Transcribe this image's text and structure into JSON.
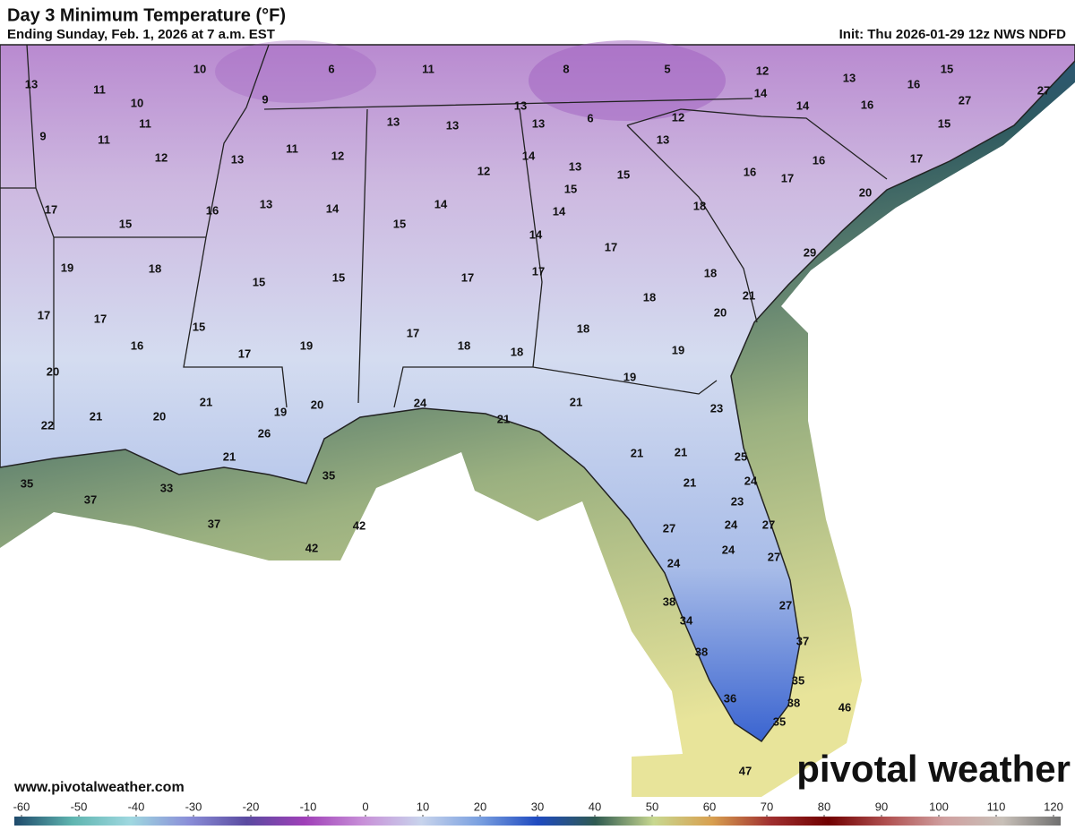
{
  "header": {
    "title": "Day 3 Minimum Temperature (°F)",
    "subtitle": "Ending Sunday, Feb. 1, 2026 at 7 a.m. EST",
    "init": "Init: Thu 2026-01-29 12z NWS NDFD"
  },
  "footer": {
    "website": "www.pivotalweather.com",
    "logo": "pivotal weather"
  },
  "colorbar": {
    "lim": [
      -60,
      120
    ],
    "ticks": [
      -60,
      -50,
      -40,
      -30,
      -20,
      -10,
      0,
      10,
      20,
      30,
      40,
      50,
      60,
      70,
      80,
      90,
      100,
      110,
      120
    ],
    "colors": [
      "#1f4a6b",
      "#5fb5b0",
      "#9fd8e0",
      "#8a8ed8",
      "#5a4aa0",
      "#a040b8",
      "#c890d8",
      "#c8d4ec",
      "#7aa0e0",
      "#1f4ac0",
      "#2f5a50",
      "#c8d890",
      "#d8a050",
      "#a03030",
      "#700000",
      "#b05050",
      "#d0a0a0",
      "#c8c0b8",
      "#707070"
    ]
  },
  "map": {
    "labels": [
      13,
      10,
      6,
      11,
      8,
      5,
      12,
      13,
      15,
      11,
      10,
      9,
      14,
      16,
      27,
      27,
      11,
      9,
      11,
      14,
      16,
      12,
      13,
      13,
      13,
      13,
      6,
      13,
      12,
      13,
      11,
      12,
      12,
      14,
      13,
      15,
      16,
      17,
      16,
      17,
      15,
      20,
      17,
      15,
      16,
      13,
      14,
      15,
      14,
      15,
      14,
      18,
      14,
      19,
      18,
      15,
      15,
      17,
      17,
      17,
      29,
      18,
      21,
      18,
      20,
      17,
      17,
      15,
      16,
      17,
      19,
      17,
      18,
      18,
      18,
      19,
      20,
      19,
      21,
      19,
      20,
      24,
      21,
      21,
      23,
      21,
      20,
      22,
      26,
      21,
      21,
      21,
      25,
      24,
      21,
      23,
      35,
      33,
      35,
      37,
      37,
      42,
      42,
      27,
      24,
      27,
      24,
      27,
      24,
      27,
      38,
      34,
      38,
      37,
      35,
      38,
      36,
      46,
      35,
      47
    ]
  }
}
